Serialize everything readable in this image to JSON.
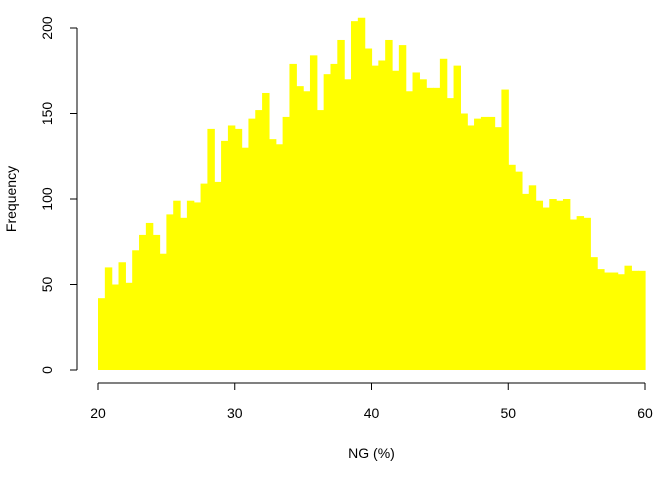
{
  "chart_data": {
    "type": "bar",
    "title": "",
    "xlabel": "NG (%)",
    "ylabel": "Frequency",
    "xlim": [
      20,
      60
    ],
    "ylim": [
      0,
      200
    ],
    "x_ticks": [
      "20",
      "30",
      "40",
      "50",
      "60"
    ],
    "y_ticks": [
      "0",
      "50",
      "100",
      "150",
      "200"
    ],
    "bin_width": 0.5,
    "bin_start": 20,
    "bar_color": "#ffff00",
    "grid": false,
    "legend": "none",
    "values": [
      42,
      60,
      50,
      63,
      51,
      70,
      79,
      86,
      79,
      68,
      91,
      99,
      89,
      99,
      98,
      109,
      141,
      110,
      134,
      143,
      141,
      130,
      147,
      152,
      162,
      135,
      132,
      148,
      179,
      166,
      163,
      184,
      152,
      173,
      179,
      193,
      170,
      204,
      206,
      188,
      178,
      181,
      193,
      175,
      190,
      163,
      174,
      170,
      165,
      165,
      182,
      159,
      178,
      150,
      143,
      147,
      148,
      148,
      142,
      164,
      120,
      116,
      103,
      108,
      99,
      95,
      100,
      99,
      100,
      88,
      90,
      89,
      66,
      59,
      57,
      57,
      56,
      61,
      58,
      58,
      58
    ]
  }
}
